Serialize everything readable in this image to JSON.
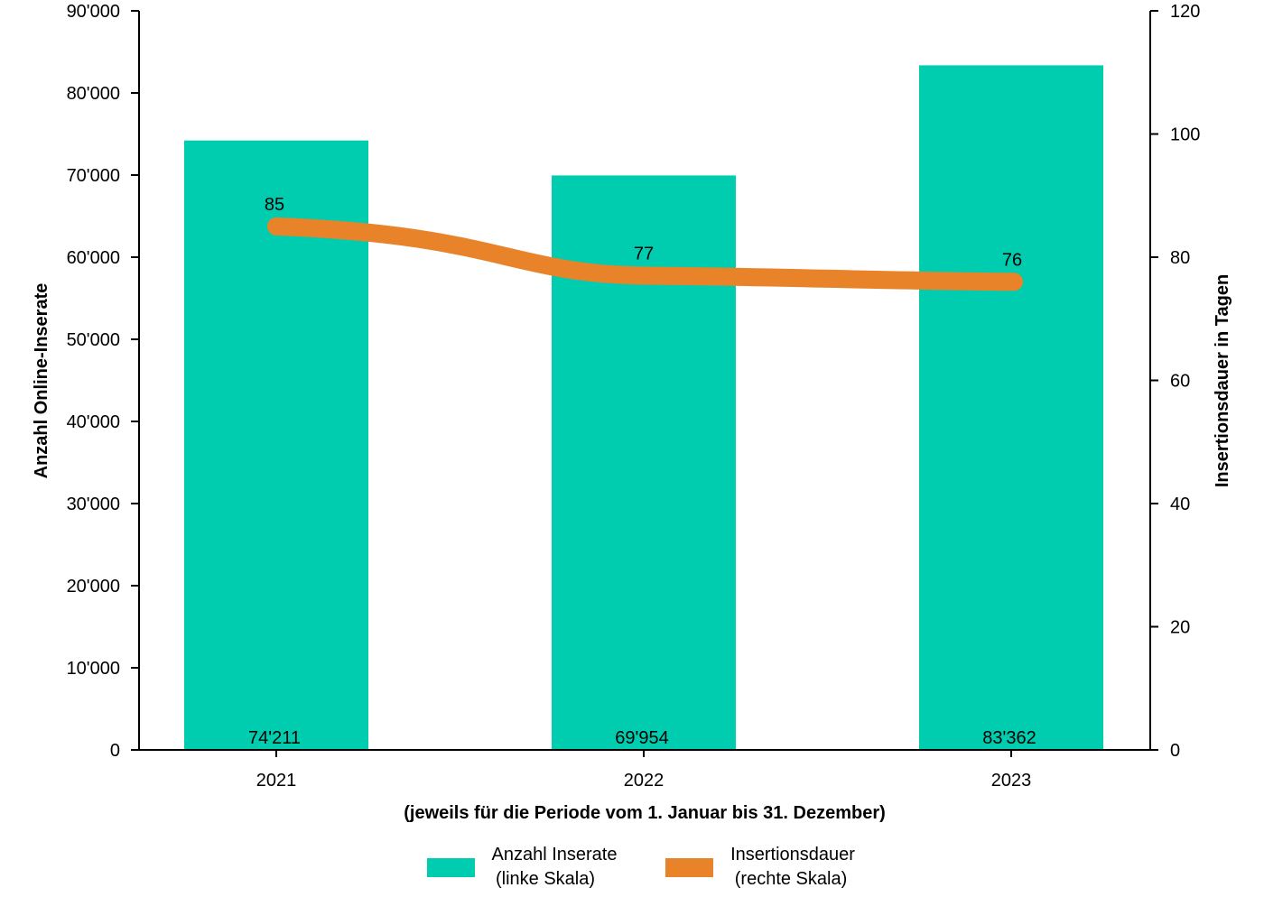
{
  "chart_data": {
    "type": "bar",
    "categories": [
      "2021",
      "2022",
      "2023"
    ],
    "series": [
      {
        "name": "Anzahl Inserate",
        "type": "bar",
        "axis": "left",
        "values": [
          74211,
          69954,
          83362
        ],
        "value_labels": [
          "74'211",
          "69'954",
          "83'362"
        ],
        "color": "#00CDB0"
      },
      {
        "name": "Insertionsdauer",
        "type": "line",
        "axis": "right",
        "values": [
          85,
          77,
          76
        ],
        "value_labels": [
          "85",
          "77",
          "76"
        ],
        "color": "#E8832A"
      }
    ],
    "xlabel": "(jeweils für die Periode vom 1. Januar bis 31. Dezember)",
    "ylabel": "Anzahl Online-Inserate",
    "y2label": "Insertionsdauer in Tagen",
    "ylim": [
      0,
      90000
    ],
    "y2lim": [
      0,
      120
    ],
    "yticks": [
      0,
      10000,
      20000,
      30000,
      40000,
      50000,
      60000,
      70000,
      80000,
      90000
    ],
    "ytick_labels": [
      "0",
      "10'000",
      "20'000",
      "30'000",
      "40'000",
      "50'000",
      "60'000",
      "70'000",
      "80'000",
      "90'000"
    ],
    "y2ticks": [
      0,
      20,
      40,
      60,
      80,
      100,
      120
    ],
    "y2tick_labels": [
      "0",
      "20",
      "40",
      "60",
      "80",
      "100",
      "120"
    ],
    "grid": false,
    "legend": {
      "placement": "bottom-center",
      "items": [
        {
          "line1": "Anzahl Inserate",
          "line2": "(linke Skala)",
          "color": "#00CDB0"
        },
        {
          "line1": "Insertionsdauer",
          "line2": "(rechte Skala)",
          "color": "#E8832A"
        }
      ]
    }
  }
}
